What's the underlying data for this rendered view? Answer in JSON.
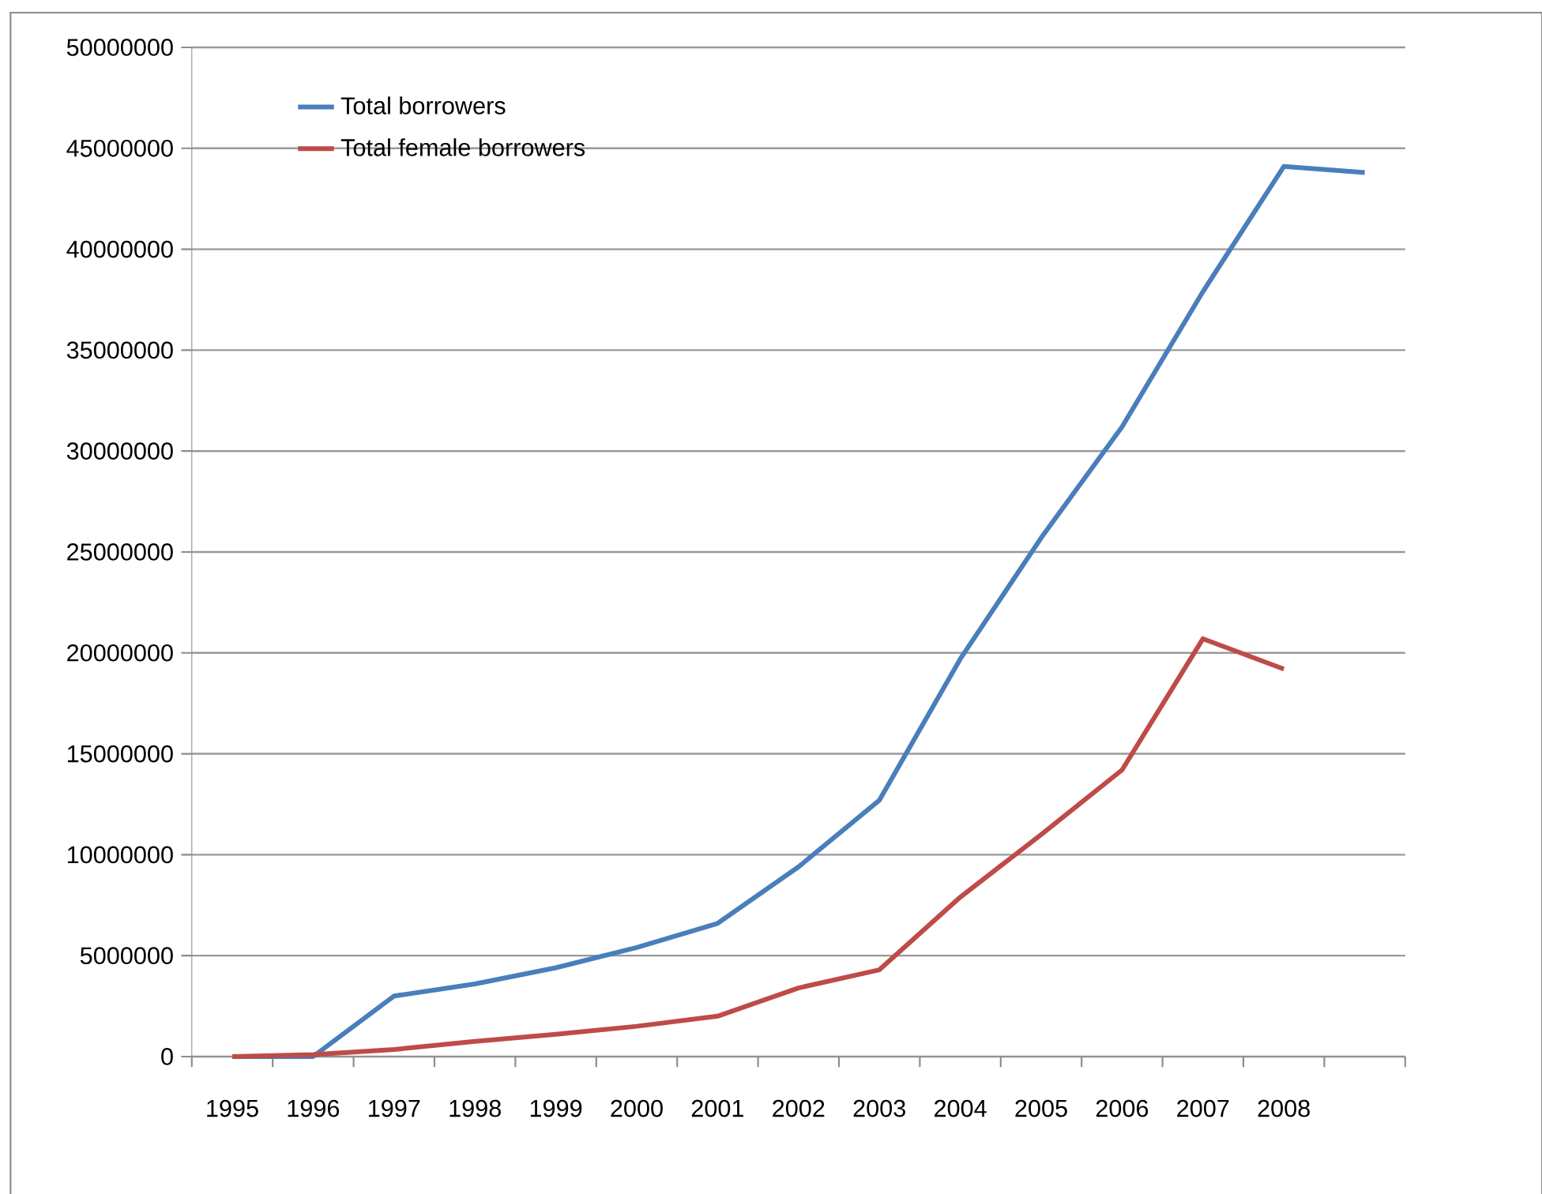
{
  "chart_data": {
    "type": "line",
    "categories": [
      "1995",
      "1996",
      "1997",
      "1998",
      "1999",
      "2000",
      "2001",
      "2002",
      "2003",
      "2004",
      "2005",
      "2006",
      "2007",
      "2008",
      null
    ],
    "series": [
      {
        "name": "Total borrowers",
        "color": "#4a7ebb",
        "values": [
          0,
          0,
          3000000,
          3600000,
          4400000,
          5400000,
          6600000,
          9400000,
          12700000,
          19700000,
          25700000,
          31200000,
          37900000,
          44100000,
          43800000
        ]
      },
      {
        "name": "Total female borrowers",
        "color": "#be4b48",
        "values": [
          0,
          100000,
          350000,
          750000,
          1100000,
          1500000,
          2000000,
          3400000,
          4300000,
          7900000,
          11000000,
          14200000,
          20700000,
          19200000,
          null
        ]
      }
    ],
    "ylim": [
      0,
      50000000
    ],
    "yticks": [
      0,
      5000000,
      10000000,
      15000000,
      20000000,
      25000000,
      30000000,
      35000000,
      40000000,
      45000000,
      50000000
    ],
    "grid": "y",
    "legend": "top left",
    "marker": "none",
    "line_style": "solid"
  }
}
